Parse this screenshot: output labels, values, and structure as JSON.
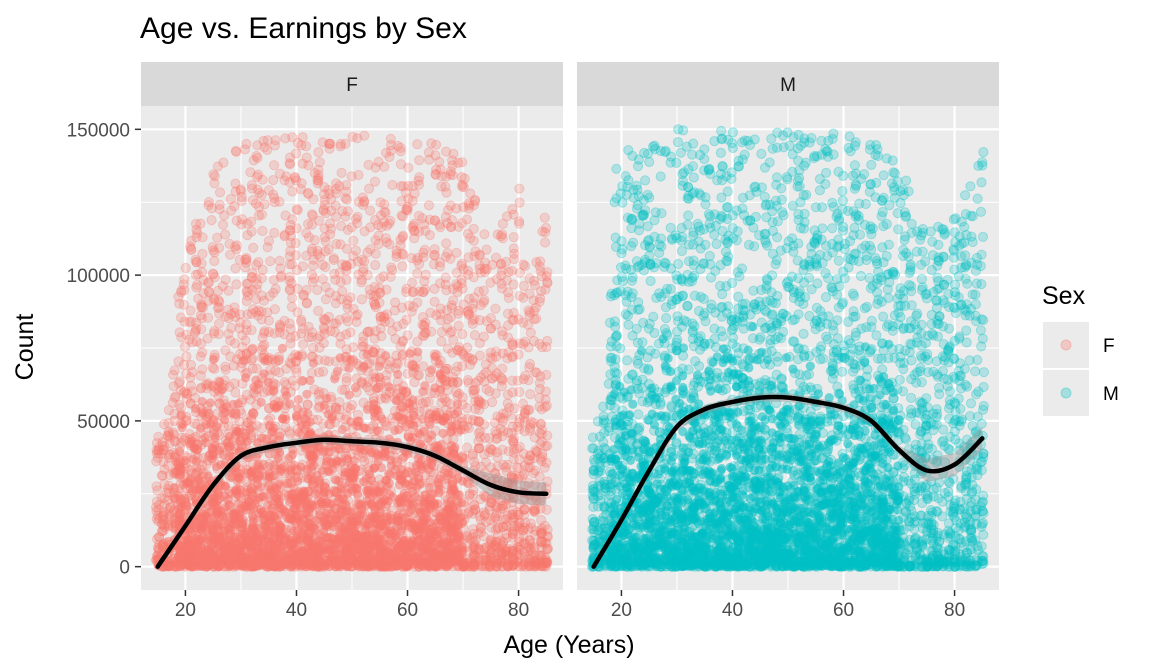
{
  "chart_data": {
    "type": "scatter",
    "title": "Age vs. Earnings by Sex",
    "xlabel": "Age (Years)",
    "ylabel": "Count",
    "xlim": [
      12,
      88
    ],
    "ylim": [
      -8000,
      158000
    ],
    "x_ticks": [
      20,
      40,
      60,
      80
    ],
    "y_ticks": [
      0,
      50000,
      100000,
      150000
    ],
    "grid": true,
    "facets": [
      "F",
      "M"
    ],
    "legend": {
      "title": "Sex",
      "position": "right",
      "entries": [
        "F",
        "M"
      ]
    },
    "series": [
      {
        "name": "F",
        "color": "#F8766D",
        "point_alpha": 0.25,
        "x_range": [
          15,
          85
        ],
        "y_max_by_age": [
          [
            15,
            45000
          ],
          [
            17,
            55000
          ],
          [
            19,
            100000
          ],
          [
            22,
            125000
          ],
          [
            25,
            140000
          ],
          [
            30,
            145000
          ],
          [
            40,
            148000
          ],
          [
            55,
            148000
          ],
          [
            65,
            145000
          ],
          [
            70,
            140000
          ],
          [
            75,
            110000
          ],
          [
            80,
            130000
          ],
          [
            82,
            100000
          ],
          [
            85,
            123000
          ]
        ],
        "smooth": {
          "x": [
            15,
            20,
            25,
            30,
            35,
            40,
            45,
            50,
            55,
            60,
            65,
            70,
            75,
            80,
            85
          ],
          "y": [
            0,
            14000,
            28000,
            38000,
            41000,
            42500,
            43500,
            43000,
            42500,
            41000,
            38000,
            33000,
            28000,
            25500,
            25000
          ]
        }
      },
      {
        "name": "M",
        "color": "#00BFC4",
        "point_alpha": 0.25,
        "x_range": [
          15,
          85
        ],
        "y_max_by_age": [
          [
            15,
            45000
          ],
          [
            17,
            55000
          ],
          [
            19,
            140000
          ],
          [
            22,
            145000
          ],
          [
            30,
            150000
          ],
          [
            40,
            150000
          ],
          [
            55,
            150000
          ],
          [
            65,
            148000
          ],
          [
            70,
            140000
          ],
          [
            75,
            115000
          ],
          [
            80,
            120000
          ],
          [
            85,
            143000
          ]
        ],
        "smooth": {
          "x": [
            15,
            20,
            25,
            30,
            35,
            40,
            45,
            50,
            55,
            60,
            65,
            70,
            75,
            80,
            85
          ],
          "y": [
            0,
            16000,
            33000,
            48000,
            54000,
            56500,
            58000,
            58000,
            56500,
            54500,
            50000,
            40000,
            33000,
            35000,
            44000
          ]
        }
      }
    ]
  },
  "colors": {
    "panel_bg": "#EBEBEB",
    "strip_bg": "#D9D9D9",
    "grid": "#FFFFFF",
    "smooth_line": "#000000",
    "confidence_band": "#999999"
  }
}
